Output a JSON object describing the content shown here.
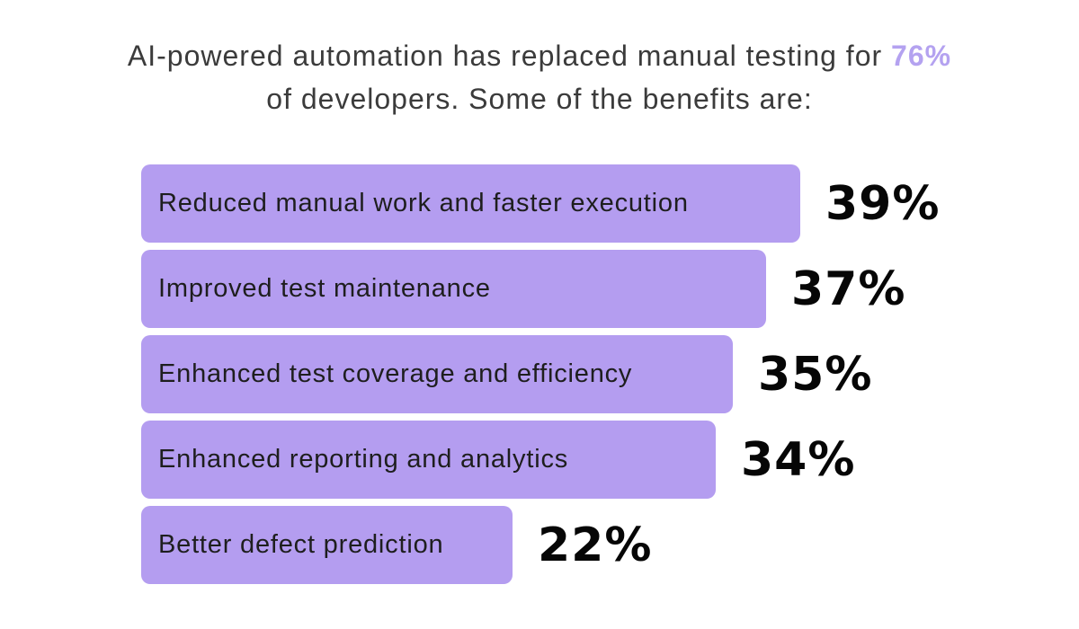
{
  "header": {
    "line1": "AI-powered automation has replaced manual testing for",
    "highlight": "76%",
    "line2": "of developers. Some of the benefits are:"
  },
  "chart_data": {
    "type": "bar",
    "orientation": "horizontal",
    "title": "AI-powered automation has replaced manual testing for 76% of developers. Some of the benefits are:",
    "highlight_stat": "76%",
    "categories": [
      "Reduced manual work and faster execution",
      "Improved test maintenance",
      "Enhanced test coverage and efficiency",
      "Enhanced reporting and analytics",
      "Better defect prediction"
    ],
    "values": [
      39,
      37,
      35,
      34,
      22
    ],
    "display_values": [
      "39%",
      "37%",
      "35%",
      "34%",
      "22%"
    ],
    "unit": "%",
    "xlim": [
      0,
      39
    ],
    "grid": false,
    "legend": "none",
    "bar_color": "#b49df0",
    "highlight_color": "#b4a2f0",
    "value_label_color": "#060606",
    "bar_text_color": "#1e1e1e"
  }
}
